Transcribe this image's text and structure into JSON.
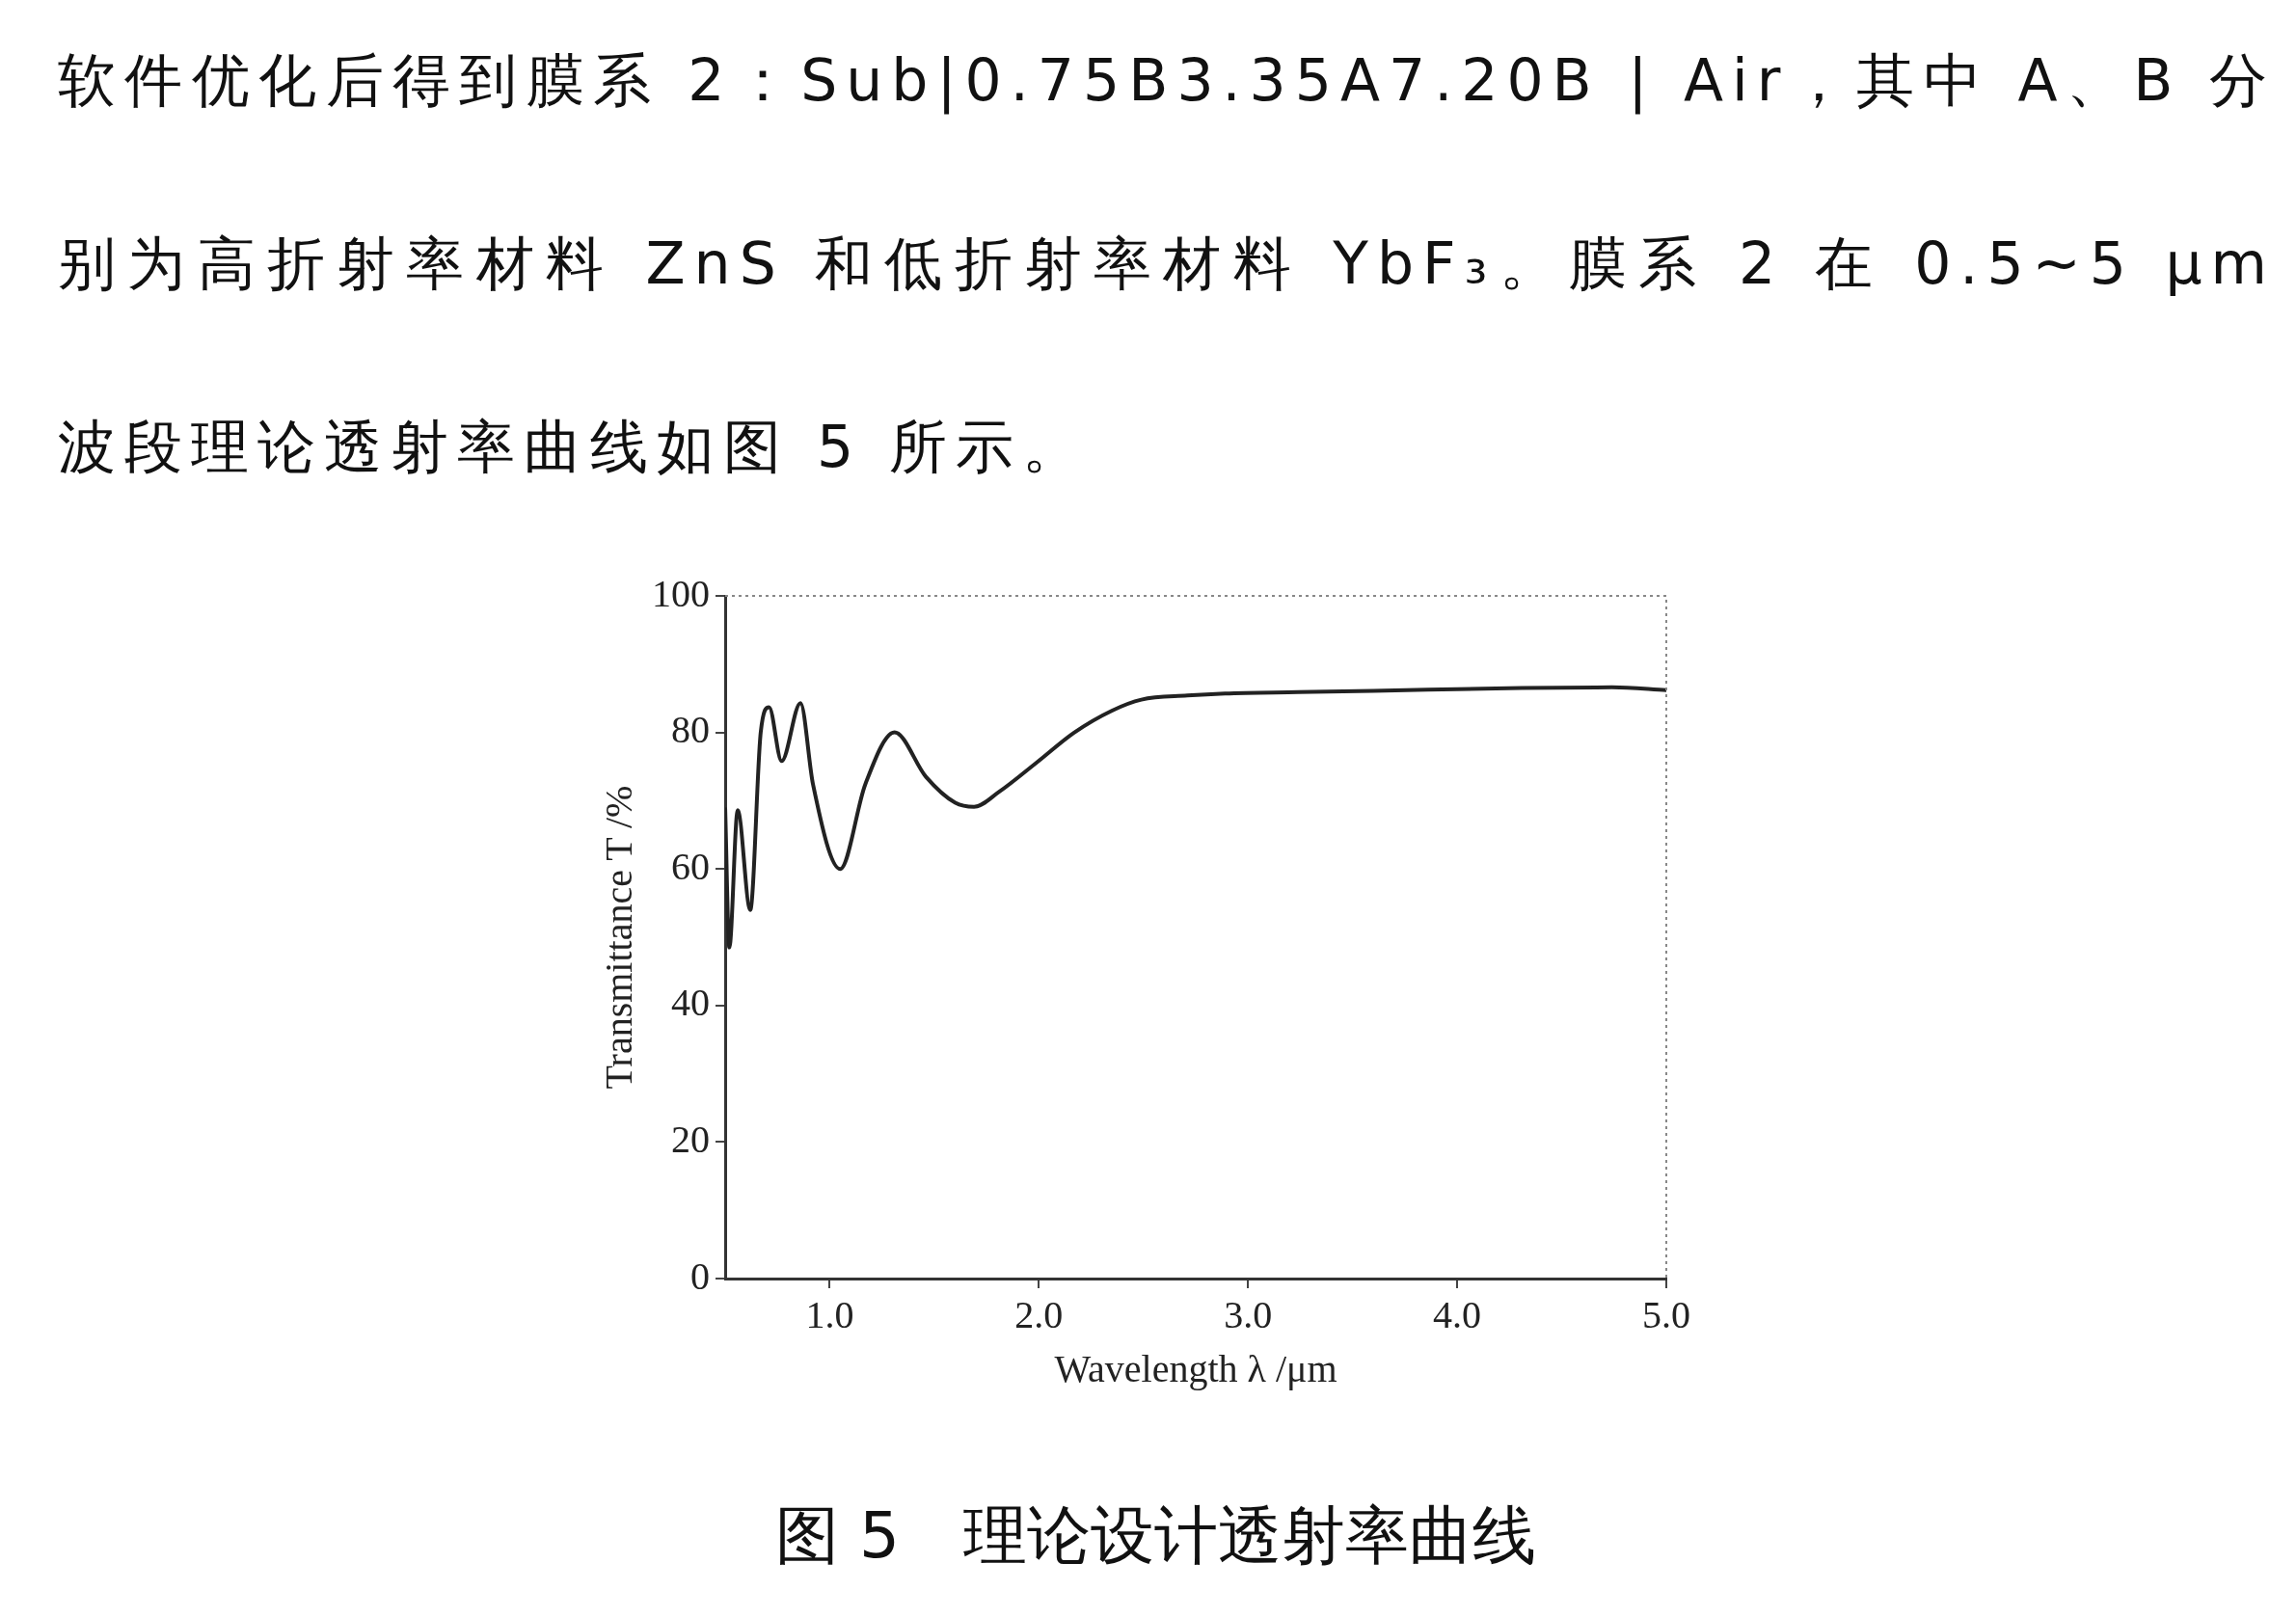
{
  "chart_data": {
    "type": "line",
    "title": "图 5　理论设计透射率曲线",
    "annotations": [
      "软件优化后得到膜系 2：Sub|0.75B3.35A7.20B | Air，其中 A、B 分别为高折射率材料 ZnS 和低折射率材料 YbF₃。膜系 2 在 0.5~5 μm 波段理论透射率曲线如图 5 所示。"
    ],
    "xlabel": "Wavelength λ /μm",
    "ylabel": "Transmittance T /%",
    "x": [
      0.5,
      0.52,
      0.56,
      0.62,
      0.67,
      0.71,
      0.77,
      0.86,
      0.92,
      1.05,
      1.17,
      1.31,
      1.46,
      1.6,
      1.69,
      1.81,
      1.99,
      2.17,
      2.35,
      2.49,
      2.71,
      2.89,
      3.24,
      3.6,
      4.31,
      4.74,
      5.0
    ],
    "series": [
      {
        "color": "#222222",
        "values": [
          69,
          48.5,
          68.6,
          54,
          80,
          83.7,
          75.8,
          84.3,
          72.4,
          60,
          72.4,
          80,
          73.5,
          69.7,
          69.1,
          71.3,
          75.6,
          80,
          83.2,
          84.8,
          85.4,
          85.7,
          85.9,
          86.1,
          86.5,
          86.6,
          86.2
        ]
      }
    ],
    "xlim": [
      0.5,
      5.0
    ],
    "ylim": [
      0,
      100
    ],
    "xticks": [
      {
        "value": 1,
        "label": "1.0"
      },
      {
        "value": 2,
        "label": "2.0"
      },
      {
        "value": 3,
        "label": "3.0"
      },
      {
        "value": 4,
        "label": "4.0"
      },
      {
        "value": 5,
        "label": "5.0"
      }
    ],
    "yticks": [
      0,
      20,
      40,
      60,
      80,
      100
    ],
    "grid": false,
    "legend": false,
    "marker": "none",
    "line_style": "solid"
  }
}
